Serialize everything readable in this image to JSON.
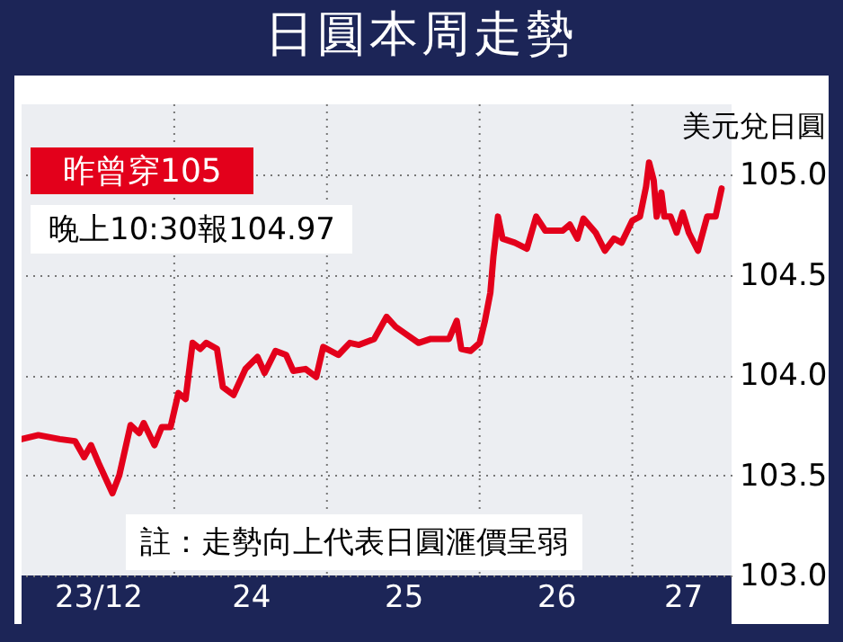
{
  "chart_data": {
    "type": "line",
    "title": "日圓本周走勢",
    "ylabel": "美元兌日圓",
    "annotations": [
      "昨曾穿105",
      "晚上10:30報104.97",
      "註：走勢向上代表日圓滙價呈弱"
    ],
    "x": [
      "--12-23T00:00",
      "--12-23T02:38",
      "--12-23T06:00",
      "--12-23T08:24",
      "--12-23T09:50",
      "--12-23T10:55",
      "--12-23T12:07",
      "--12-23T14:17",
      "--12-23T15:22",
      "--12-23T17:08",
      "--12-23T18:29",
      "--12-23T19:12",
      "--12-23T20:53",
      "--12-23T22:02",
      "--12-23T23:25",
      "--12-24T00:39",
      "--12-24T01:47",
      "--12-24T02:53",
      "--12-24T04:05",
      "--12-24T05:02",
      "--12-24T06:43",
      "--12-24T07:38",
      "--12-24T09:19",
      "--12-24T11:12",
      "--12-24T13:05",
      "--12-24T14:12",
      "--12-24T15:55",
      "--12-24T17:35",
      "--12-24T18:43",
      "--12-24T20:38",
      "--12-24T22:19",
      "--12-24T23:25",
      "--12-25T01:48",
      "--12-25T03:36",
      "--12-25T05:02",
      "--12-25T07:26",
      "--12-25T09:22",
      "--12-25T10:48",
      "--12-25T14:24",
      "--12-25T16:19",
      "--12-25T19:12",
      "--12-25T20:24",
      "--12-25T21:07",
      "--12-25T22:34",
      "--12-26T00:00",
      "--12-26T00:50",
      "--12-26T01:41",
      "--12-26T02:10",
      "--12-26T02:53",
      "--12-26T03:36",
      "--12-26T05:31",
      "--12-26T07:26",
      "--12-26T08:53",
      "--12-26T10:19",
      "--12-26T13:05",
      "--12-26T14:10",
      "--12-26T15:22",
      "--12-26T16:19",
      "--12-26T18:14",
      "--12-26T19:41",
      "--12-26T21:07",
      "--12-26T22:19",
      "--12-27T00:00",
      "--12-27T01:12",
      "--12-27T02:10",
      "--12-27T02:38",
      "--12-27T03:22",
      "--12-27T03:50",
      "--12-27T04:34",
      "--12-27T05:02",
      "--12-27T06:00",
      "--12-27T06:58",
      "--12-27T07:55",
      "--12-27T08:53",
      "--12-27T10:19",
      "--12-27T11:46",
      "--12-27T13:05",
      "--12-27T14:02"
    ],
    "series": [
      {
        "color": "#e3001b",
        "values": [
          103.68,
          103.7,
          103.68,
          103.67,
          103.59,
          103.65,
          103.56,
          103.41,
          103.5,
          103.75,
          103.71,
          103.76,
          103.65,
          103.74,
          103.74,
          103.91,
          103.88,
          104.16,
          104.13,
          104.16,
          104.13,
          103.94,
          103.9,
          104.03,
          104.09,
          104.01,
          104.12,
          104.1,
          104.02,
          104.03,
          103.99,
          104.14,
          104.1,
          104.16,
          104.15,
          104.18,
          104.29,
          104.24,
          104.16,
          104.18,
          104.18,
          104.27,
          104.13,
          104.12,
          104.16,
          104.27,
          104.41,
          104.59,
          104.79,
          104.68,
          104.66,
          104.63,
          104.79,
          104.72,
          104.72,
          104.75,
          104.68,
          104.78,
          104.71,
          104.62,
          104.68,
          104.66,
          104.77,
          104.79,
          104.94,
          105.06,
          104.97,
          104.79,
          104.91,
          104.79,
          104.79,
          104.71,
          104.81,
          104.71,
          104.62,
          104.79,
          104.79,
          104.93
        ]
      }
    ],
    "xlim": [
      "--12-23T00:00",
      "--12-27T15:36"
    ],
    "xticks": [
      {
        "value": "--12-23T12:00",
        "label": "23/12"
      },
      {
        "value": "--12-24T00:00",
        "label": null
      },
      {
        "value": "--12-24T12:00",
        "label": "24"
      },
      {
        "value": "--12-25T00:00",
        "label": null
      },
      {
        "value": "--12-25T12:00",
        "label": "25"
      },
      {
        "value": "--12-26T00:00",
        "label": null
      },
      {
        "value": "--12-26T12:00",
        "label": "26"
      },
      {
        "value": "--12-27T00:00",
        "label": null
      },
      {
        "value": "--12-27T07:55",
        "label": "27"
      }
    ],
    "ylim": [
      103.0,
      105.35
    ],
    "yticks": [
      {
        "value": 103,
        "label": "103.0"
      },
      {
        "value": 103.5,
        "label": "103.5"
      },
      {
        "value": 104,
        "label": "104.0"
      },
      {
        "value": 104.5,
        "label": "104.5"
      },
      {
        "value": 105,
        "label": "105.0"
      }
    ],
    "grid": true
  }
}
